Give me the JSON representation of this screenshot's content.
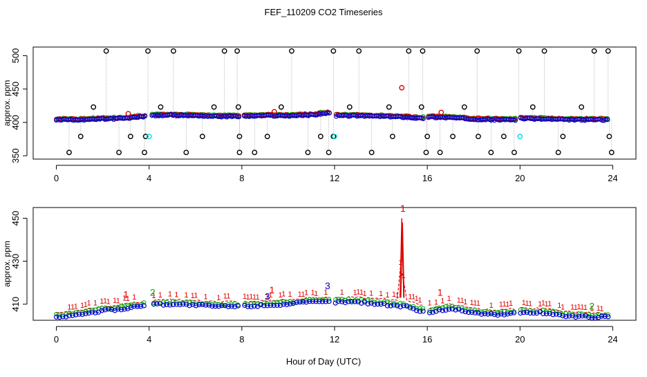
{
  "title": "FEF_110209  CO2 Timeseries",
  "xlabel": "Hour of Day (UTC)",
  "colors": {
    "black": "#000000",
    "red": "#dd0000",
    "green": "#00aa00",
    "blue": "#0000cc",
    "cyan": "#00dddd",
    "line": "#999999"
  },
  "chart_data": [
    {
      "type": "scatter",
      "panel": "top",
      "ylabel": "approx. ppm",
      "xlim": [
        -1,
        25
      ],
      "ylim": [
        345,
        513
      ],
      "xticks": [
        0,
        4,
        8,
        12,
        16,
        20,
        24
      ],
      "yticks": [
        350,
        400,
        450,
        500
      ],
      "baseline": {
        "x": [
          0,
          1,
          2,
          3,
          4,
          5,
          6,
          7,
          8,
          9,
          10,
          11,
          11.7,
          12,
          13,
          14,
          15,
          15.8,
          16,
          17,
          18,
          19,
          19.8,
          20,
          21,
          22,
          23,
          23.8
        ],
        "y": [
          404,
          404,
          405,
          406,
          410,
          411,
          410,
          409,
          409,
          410,
          410,
          411,
          414,
          410,
          410,
          409,
          408,
          406,
          408,
          407,
          405,
          404,
          404,
          406,
          405,
          404,
          404,
          404
        ],
        "gaps": [
          3.95,
          7.95,
          11.9,
          15.9,
          19.9,
          23.9
        ]
      },
      "spikes_high": [
        2.15,
        3.95,
        5.05,
        7.25,
        7.8,
        10.15,
        11.95,
        13.05,
        15.2,
        15.8,
        18.15,
        19.95,
        21.05,
        23.2,
        23.8
      ],
      "spikes_low": [
        0.55,
        2.7,
        3.8,
        5.6,
        7.9,
        8.55,
        10.85,
        11.75,
        13.6,
        15.95,
        16.55,
        18.75,
        19.75,
        21.65,
        23.95
      ],
      "points_high_mid": [
        1.6,
        4.5,
        6.8,
        7.85,
        9.7,
        14.35,
        15.75,
        17.6,
        20.55,
        22.65,
        12.65
      ],
      "points_low_mid": [
        1.05,
        3.2,
        3.85,
        6.3,
        7.9,
        9.1,
        11.4,
        11.95,
        14.5,
        16.0,
        17.1,
        18.2,
        19.3,
        21.85,
        23.85
      ],
      "red_points": [
        {
          "x": 14.9,
          "y": 452
        },
        {
          "x": 16.6,
          "y": 415
        },
        {
          "x": 9.4,
          "y": 416
        },
        {
          "x": 3.1,
          "y": 413
        }
      ],
      "cyan_points": [
        {
          "x": 4.0,
          "y": 379
        },
        {
          "x": 12.0,
          "y": 379
        },
        {
          "x": 20.0,
          "y": 379
        }
      ]
    },
    {
      "type": "line",
      "panel": "bottom",
      "ylabel": "approx. ppm",
      "xlim": [
        -1,
        25
      ],
      "ylim": [
        402.5,
        455
      ],
      "xticks": [
        0,
        4,
        8,
        12,
        16,
        20,
        24
      ],
      "yticks": [
        410,
        430,
        450
      ],
      "series_labels": [
        "1",
        "2",
        "3"
      ],
      "series": [
        {
          "name": "1",
          "x": [
            0,
            1,
            2,
            3,
            4,
            5,
            6,
            7,
            8,
            9,
            10,
            11,
            12,
            13,
            14,
            14.8,
            14.9,
            15.0,
            15.1,
            15.5,
            16,
            16.5,
            17,
            18,
            19,
            20,
            21,
            22,
            23,
            23.8
          ],
          "y": [
            406,
            407,
            409,
            410,
            412,
            412,
            411.5,
            411,
            411,
            411.5,
            412,
            413,
            413,
            413,
            412.5,
            412,
            450,
            413,
            412,
            411,
            408,
            409,
            410,
            408,
            407,
            408,
            408,
            406.5,
            406,
            406
          ]
        },
        {
          "name": "2",
          "x": [
            0,
            1,
            2,
            3,
            4,
            5,
            6,
            7,
            8,
            9,
            10,
            11,
            12,
            13,
            14,
            15,
            16,
            17,
            18,
            19,
            20,
            21,
            22,
            23,
            23.8
          ],
          "y": [
            405,
            406,
            408,
            409,
            411,
            411,
            410.5,
            410,
            410,
            410.5,
            411,
            412,
            412,
            412,
            411,
            410,
            407,
            409,
            407,
            406,
            407,
            407,
            405.5,
            405,
            405
          ]
        },
        {
          "name": "3",
          "x": [
            0,
            1,
            2,
            3,
            4,
            5,
            6,
            7,
            8,
            9,
            10,
            11,
            12,
            13,
            14,
            15,
            16,
            17,
            18,
            19,
            20,
            21,
            22,
            23,
            23.8
          ],
          "y": [
            404,
            405,
            407,
            408,
            410,
            410,
            409.5,
            409,
            409,
            409.5,
            410,
            411,
            411,
            411,
            410,
            409,
            406,
            408,
            406,
            405,
            406,
            406,
            404.5,
            404,
            404
          ]
        }
      ],
      "gaps": [
        3.95,
        7.95,
        11.9,
        15.9,
        19.9,
        23.9
      ],
      "annotations": [
        {
          "text": "1",
          "x": 14.95,
          "y": 453,
          "series": "1"
        },
        {
          "text": "1",
          "x": 3.0,
          "y": 413,
          "series": "1"
        },
        {
          "text": "2",
          "x": 4.15,
          "y": 414,
          "series": "2"
        },
        {
          "text": "3",
          "x": 11.7,
          "y": 417,
          "series": "3"
        },
        {
          "text": "1",
          "x": 16.55,
          "y": 414,
          "series": "1"
        },
        {
          "text": "1",
          "x": 9.3,
          "y": 415,
          "series": "1"
        },
        {
          "text": "3",
          "x": 9.1,
          "y": 412,
          "series": "3"
        },
        {
          "text": "2",
          "x": 23.1,
          "y": 407.5,
          "series": "2"
        }
      ]
    }
  ]
}
